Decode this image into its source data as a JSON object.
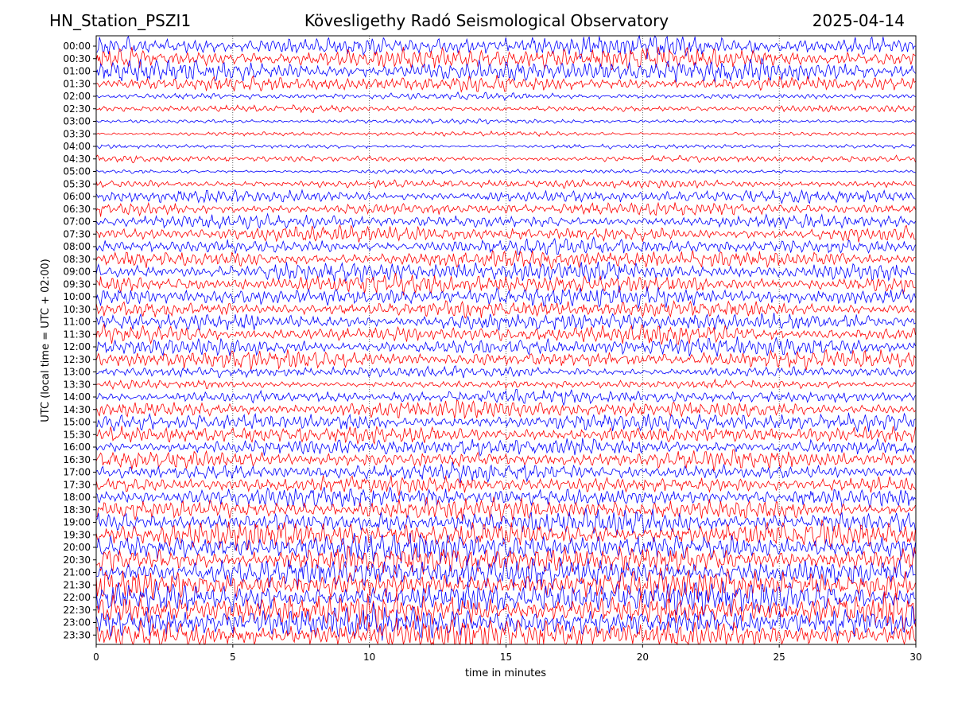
{
  "header": {
    "station": "HN_Station_PSZI1",
    "observatory": "Kövesligethy Radó Seismological Observatory",
    "date": "2025-04-14"
  },
  "chart_data": {
    "type": "line",
    "subtype": "helicorder",
    "xlabel": "time in minutes",
    "ylabel": "UTC (local time = UTC + 02:00)",
    "xlim": [
      0,
      30
    ],
    "x_ticks": [
      0,
      5,
      10,
      15,
      20,
      25,
      30
    ],
    "x_tick_labels": [
      "0",
      "5",
      "10",
      "15",
      "20",
      "25",
      "30"
    ],
    "grid": "vertical dotted at 5-minute ticks",
    "colors": {
      "series_a": "#0000ff",
      "series_b": "#ff0000",
      "grid": "#000000"
    },
    "rows": [
      {
        "label": "00:00",
        "color": "#0000ff",
        "amplitude": 10
      },
      {
        "label": "00:30",
        "color": "#ff0000",
        "amplitude": 10
      },
      {
        "label": "01:00",
        "color": "#0000ff",
        "amplitude": 10
      },
      {
        "label": "01:30",
        "color": "#ff0000",
        "amplitude": 7
      },
      {
        "label": "02:00",
        "color": "#0000ff",
        "amplitude": 3
      },
      {
        "label": "02:30",
        "color": "#ff0000",
        "amplitude": 3
      },
      {
        "label": "03:00",
        "color": "#0000ff",
        "amplitude": 2
      },
      {
        "label": "03:30",
        "color": "#ff0000",
        "amplitude": 2
      },
      {
        "label": "04:00",
        "color": "#0000ff",
        "amplitude": 2
      },
      {
        "label": "04:30",
        "color": "#ff0000",
        "amplitude": 3
      },
      {
        "label": "05:00",
        "color": "#0000ff",
        "amplitude": 2
      },
      {
        "label": "05:30",
        "color": "#ff0000",
        "amplitude": 4
      },
      {
        "label": "06:00",
        "color": "#0000ff",
        "amplitude": 6
      },
      {
        "label": "06:30",
        "color": "#ff0000",
        "amplitude": 6
      },
      {
        "label": "07:00",
        "color": "#0000ff",
        "amplitude": 6
      },
      {
        "label": "07:30",
        "color": "#ff0000",
        "amplitude": 7
      },
      {
        "label": "08:00",
        "color": "#0000ff",
        "amplitude": 7
      },
      {
        "label": "08:30",
        "color": "#ff0000",
        "amplitude": 8
      },
      {
        "label": "09:00",
        "color": "#0000ff",
        "amplitude": 9
      },
      {
        "label": "09:30",
        "color": "#ff0000",
        "amplitude": 9
      },
      {
        "label": "10:00",
        "color": "#0000ff",
        "amplitude": 9
      },
      {
        "label": "10:30",
        "color": "#ff0000",
        "amplitude": 8
      },
      {
        "label": "11:00",
        "color": "#0000ff",
        "amplitude": 8
      },
      {
        "label": "11:30",
        "color": "#ff0000",
        "amplitude": 8
      },
      {
        "label": "12:00",
        "color": "#0000ff",
        "amplitude": 8
      },
      {
        "label": "12:30",
        "color": "#ff0000",
        "amplitude": 8
      },
      {
        "label": "13:00",
        "color": "#0000ff",
        "amplitude": 5
      },
      {
        "label": "13:30",
        "color": "#ff0000",
        "amplitude": 4
      },
      {
        "label": "14:00",
        "color": "#0000ff",
        "amplitude": 6
      },
      {
        "label": "14:30",
        "color": "#ff0000",
        "amplitude": 8
      },
      {
        "label": "15:00",
        "color": "#0000ff",
        "amplitude": 8
      },
      {
        "label": "15:30",
        "color": "#ff0000",
        "amplitude": 8
      },
      {
        "label": "16:00",
        "color": "#0000ff",
        "amplitude": 8
      },
      {
        "label": "16:30",
        "color": "#ff0000",
        "amplitude": 8
      },
      {
        "label": "17:00",
        "color": "#0000ff",
        "amplitude": 8
      },
      {
        "label": "17:30",
        "color": "#ff0000",
        "amplitude": 8
      },
      {
        "label": "18:00",
        "color": "#0000ff",
        "amplitude": 9
      },
      {
        "label": "18:30",
        "color": "#ff0000",
        "amplitude": 10
      },
      {
        "label": "19:00",
        "color": "#0000ff",
        "amplitude": 11
      },
      {
        "label": "19:30",
        "color": "#ff0000",
        "amplitude": 12
      },
      {
        "label": "20:00",
        "color": "#0000ff",
        "amplitude": 13
      },
      {
        "label": "20:30",
        "color": "#ff0000",
        "amplitude": 13
      },
      {
        "label": "21:00",
        "color": "#0000ff",
        "amplitude": 14
      },
      {
        "label": "21:30",
        "color": "#ff0000",
        "amplitude": 14
      },
      {
        "label": "22:00",
        "color": "#0000ff",
        "amplitude": 15
      },
      {
        "label": "22:30",
        "color": "#ff0000",
        "amplitude": 15
      },
      {
        "label": "23:00",
        "color": "#0000ff",
        "amplitude": 15
      },
      {
        "label": "23:30",
        "color": "#ff0000",
        "amplitude": 15
      }
    ]
  }
}
